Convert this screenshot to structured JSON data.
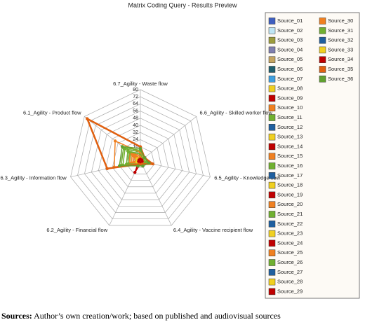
{
  "chart_data": {
    "type": "radar",
    "title": "Matrix Coding Query - Results Preview",
    "categories": [
      "6.7_Agility - Waste flow",
      "6.6_Agility - Skilled worker flow",
      "6.5_Agility - Knowledge flow",
      "6.4_Agility - Vaccine recipient flow",
      "6.2_Agility - Financial flow",
      "6.3_Agility - Information flow",
      "6.1_Agility - Product flow"
    ],
    "ylim": [
      0,
      80
    ],
    "yticks": [
      0,
      8,
      16,
      24,
      32,
      40,
      48,
      56,
      64,
      72,
      80
    ],
    "grid": true,
    "series": [
      {
        "name": "Source_01",
        "color": "#3f5fbf",
        "values": [
          2,
          4,
          2,
          2,
          2,
          2,
          4
        ]
      },
      {
        "name": "Source_02",
        "color": "#bfe6f5",
        "values": [
          2,
          2,
          2,
          2,
          2,
          2,
          2
        ]
      },
      {
        "name": "Source_03",
        "color": "#9c9c3c",
        "values": [
          4,
          2,
          4,
          2,
          2,
          6,
          8
        ]
      },
      {
        "name": "Source_04",
        "color": "#7f7fb0",
        "values": [
          2,
          2,
          2,
          2,
          2,
          2,
          2
        ]
      },
      {
        "name": "Source_05",
        "color": "#c4a460",
        "values": [
          2,
          2,
          2,
          2,
          2,
          4,
          4
        ]
      },
      {
        "name": "Source_06",
        "color": "#1f5f6f",
        "values": [
          2,
          2,
          2,
          2,
          2,
          2,
          4
        ]
      },
      {
        "name": "Source_07",
        "color": "#3fa0e0",
        "values": [
          2,
          2,
          2,
          2,
          2,
          2,
          2
        ]
      },
      {
        "name": "Source_08",
        "color": "#f0d020",
        "values": [
          4,
          2,
          2,
          2,
          2,
          4,
          6
        ]
      },
      {
        "name": "Source_09",
        "color": "#c00000",
        "values": [
          2,
          2,
          2,
          2,
          2,
          2,
          2
        ]
      },
      {
        "name": "Source_10",
        "color": "#f08020",
        "values": [
          4,
          2,
          4,
          2,
          2,
          8,
          10
        ]
      },
      {
        "name": "Source_11",
        "color": "#70b030",
        "values": [
          6,
          4,
          4,
          2,
          4,
          12,
          14
        ]
      },
      {
        "name": "Source_12",
        "color": "#1f5f9f",
        "values": [
          2,
          2,
          2,
          2,
          2,
          2,
          4
        ]
      },
      {
        "name": "Source_13",
        "color": "#f0d020",
        "values": [
          2,
          2,
          2,
          2,
          2,
          4,
          4
        ]
      },
      {
        "name": "Source_14",
        "color": "#c00000",
        "values": [
          2,
          2,
          2,
          2,
          2,
          2,
          2
        ]
      },
      {
        "name": "Source_15",
        "color": "#f08020",
        "values": [
          4,
          2,
          2,
          2,
          2,
          6,
          8
        ]
      },
      {
        "name": "Source_16",
        "color": "#70b030",
        "values": [
          8,
          4,
          6,
          4,
          4,
          16,
          18
        ]
      },
      {
        "name": "Source_17",
        "color": "#1f5f9f",
        "values": [
          2,
          2,
          2,
          6,
          2,
          2,
          2
        ]
      },
      {
        "name": "Source_18",
        "color": "#f0d020",
        "values": [
          2,
          2,
          2,
          2,
          2,
          4,
          4
        ]
      },
      {
        "name": "Source_19",
        "color": "#c00000",
        "values": [
          2,
          2,
          2,
          2,
          14,
          2,
          2
        ]
      },
      {
        "name": "Source_20",
        "color": "#f08020",
        "values": [
          6,
          2,
          4,
          2,
          2,
          10,
          12
        ]
      },
      {
        "name": "Source_21",
        "color": "#70b030",
        "values": [
          10,
          4,
          6,
          4,
          4,
          20,
          22
        ]
      },
      {
        "name": "Source_22",
        "color": "#1f5f9f",
        "values": [
          2,
          2,
          2,
          2,
          2,
          2,
          2
        ]
      },
      {
        "name": "Source_23",
        "color": "#f0d020",
        "values": [
          2,
          2,
          2,
          2,
          2,
          2,
          4
        ]
      },
      {
        "name": "Source_24",
        "color": "#c00000",
        "values": [
          2,
          2,
          2,
          2,
          4,
          2,
          2
        ]
      },
      {
        "name": "Source_25",
        "color": "#f08020",
        "values": [
          6,
          4,
          6,
          2,
          2,
          12,
          16
        ]
      },
      {
        "name": "Source_26",
        "color": "#70b030",
        "values": [
          8,
          4,
          6,
          4,
          4,
          14,
          16
        ]
      },
      {
        "name": "Source_27",
        "color": "#1f5f9f",
        "values": [
          2,
          2,
          2,
          2,
          2,
          2,
          2
        ]
      },
      {
        "name": "Source_28",
        "color": "#f0d020",
        "values": [
          2,
          2,
          2,
          2,
          2,
          4,
          4
        ]
      },
      {
        "name": "Source_29",
        "color": "#c00000",
        "values": [
          2,
          2,
          2,
          2,
          2,
          2,
          2
        ]
      },
      {
        "name": "Source_30",
        "color": "#f08020",
        "values": [
          10,
          6,
          12,
          4,
          4,
          30,
          36
        ]
      },
      {
        "name": "Source_31",
        "color": "#70b030",
        "values": [
          12,
          6,
          8,
          6,
          6,
          22,
          24
        ]
      },
      {
        "name": "Source_32",
        "color": "#1f5f9f",
        "values": [
          2,
          2,
          2,
          2,
          2,
          2,
          2
        ]
      },
      {
        "name": "Source_33",
        "color": "#f0d020",
        "values": [
          2,
          2,
          2,
          2,
          2,
          2,
          2
        ]
      },
      {
        "name": "Source_34",
        "color": "#c00000",
        "values": [
          2,
          2,
          2,
          2,
          2,
          2,
          2
        ]
      },
      {
        "name": "Source_35",
        "color": "#e06010",
        "values": [
          16,
          6,
          14,
          4,
          4,
          38,
          76
        ]
      },
      {
        "name": "Source_36",
        "color": "#60a030",
        "values": [
          14,
          6,
          10,
          6,
          6,
          24,
          26
        ]
      }
    ]
  },
  "caption": {
    "label": "Sources:",
    "text": "Author’s own creation/work; based on published and audiovisual sources"
  }
}
